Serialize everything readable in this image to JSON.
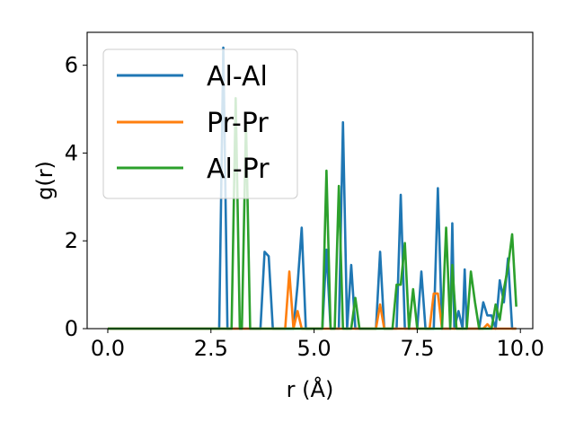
{
  "chart_data": {
    "type": "line",
    "xlabel": "r (Å)",
    "ylabel": "g(r)",
    "xlim": [
      -0.5,
      10.3
    ],
    "ylim": [
      0,
      6.75
    ],
    "xticks": [
      0.0,
      2.5,
      5.0,
      7.5,
      10.0
    ],
    "xtick_labels": [
      "0.0",
      "2.5",
      "5.0",
      "7.5",
      "10.0"
    ],
    "yticks": [
      0,
      2,
      4,
      6
    ],
    "ytick_labels": [
      "0",
      "2",
      "4",
      "6"
    ],
    "grid": false,
    "legend_position": "upper-left",
    "series": [
      {
        "name": "Al-Al",
        "color": "#1f77b4",
        "points": [
          [
            0,
            0
          ],
          [
            2.6,
            0
          ],
          [
            2.7,
            0
          ],
          [
            2.8,
            6.4
          ],
          [
            2.9,
            0
          ],
          [
            3.7,
            0
          ],
          [
            3.8,
            1.75
          ],
          [
            3.9,
            1.65
          ],
          [
            4.0,
            0
          ],
          [
            4.5,
            0
          ],
          [
            4.6,
            1.0
          ],
          [
            4.7,
            2.3
          ],
          [
            4.8,
            0
          ],
          [
            5.2,
            0
          ],
          [
            5.3,
            1.8
          ],
          [
            5.4,
            0
          ],
          [
            5.6,
            0
          ],
          [
            5.7,
            4.7
          ],
          [
            5.8,
            0
          ],
          [
            5.9,
            1.45
          ],
          [
            6.0,
            0
          ],
          [
            6.5,
            0
          ],
          [
            6.6,
            1.75
          ],
          [
            6.7,
            0
          ],
          [
            7.0,
            0
          ],
          [
            7.1,
            3.05
          ],
          [
            7.2,
            0
          ],
          [
            7.5,
            0
          ],
          [
            7.6,
            1.3
          ],
          [
            7.7,
            0
          ],
          [
            7.9,
            0
          ],
          [
            8.0,
            3.2
          ],
          [
            8.1,
            0
          ],
          [
            8.3,
            0
          ],
          [
            8.35,
            2.4
          ],
          [
            8.4,
            0
          ],
          [
            8.5,
            0.4
          ],
          [
            8.6,
            0
          ],
          [
            8.65,
            1.35
          ],
          [
            8.7,
            0
          ],
          [
            9.0,
            0
          ],
          [
            9.1,
            0.6
          ],
          [
            9.2,
            0.3
          ],
          [
            9.3,
            0.3
          ],
          [
            9.4,
            0
          ],
          [
            9.5,
            1.1
          ],
          [
            9.6,
            0.6
          ],
          [
            9.7,
            1.6
          ],
          [
            9.8,
            0
          ],
          [
            9.9,
            0
          ]
        ]
      },
      {
        "name": "Pr-Pr",
        "color": "#ff7f0e",
        "points": [
          [
            0,
            0
          ],
          [
            4.3,
            0
          ],
          [
            4.4,
            1.3
          ],
          [
            4.5,
            0
          ],
          [
            4.6,
            0.4
          ],
          [
            4.7,
            0
          ],
          [
            6.5,
            0
          ],
          [
            6.6,
            0.55
          ],
          [
            6.7,
            0
          ],
          [
            7.8,
            0
          ],
          [
            7.9,
            0.8
          ],
          [
            8.0,
            0.8
          ],
          [
            8.1,
            0
          ],
          [
            9.1,
            0
          ],
          [
            9.2,
            0.1
          ],
          [
            9.3,
            0
          ],
          [
            9.9,
            0
          ]
        ]
      },
      {
        "name": "Al-Pr",
        "color": "#2ca02c",
        "points": [
          [
            0,
            0
          ],
          [
            2.9,
            0
          ],
          [
            3.0,
            0
          ],
          [
            3.1,
            5.25
          ],
          [
            3.2,
            0
          ],
          [
            3.25,
            0
          ],
          [
            3.35,
            4.7
          ],
          [
            3.45,
            0
          ],
          [
            5.2,
            0
          ],
          [
            5.3,
            3.6
          ],
          [
            5.4,
            0
          ],
          [
            5.5,
            0
          ],
          [
            5.6,
            3.25
          ],
          [
            5.7,
            0
          ],
          [
            5.9,
            0
          ],
          [
            6.0,
            0.7
          ],
          [
            6.1,
            0
          ],
          [
            6.9,
            0
          ],
          [
            7.0,
            1.0
          ],
          [
            7.1,
            1.0
          ],
          [
            7.2,
            1.95
          ],
          [
            7.3,
            0
          ],
          [
            7.4,
            0.9
          ],
          [
            7.5,
            0
          ],
          [
            8.1,
            0
          ],
          [
            8.2,
            2.3
          ],
          [
            8.3,
            0
          ],
          [
            8.35,
            1.45
          ],
          [
            8.45,
            0
          ],
          [
            8.7,
            0
          ],
          [
            8.8,
            1.3
          ],
          [
            8.9,
            0.6
          ],
          [
            9.0,
            0
          ],
          [
            9.3,
            0
          ],
          [
            9.4,
            0.55
          ],
          [
            9.5,
            0.2
          ],
          [
            9.6,
            0.9
          ],
          [
            9.7,
            1.4
          ],
          [
            9.8,
            2.15
          ],
          [
            9.9,
            0.5
          ]
        ]
      }
    ]
  }
}
